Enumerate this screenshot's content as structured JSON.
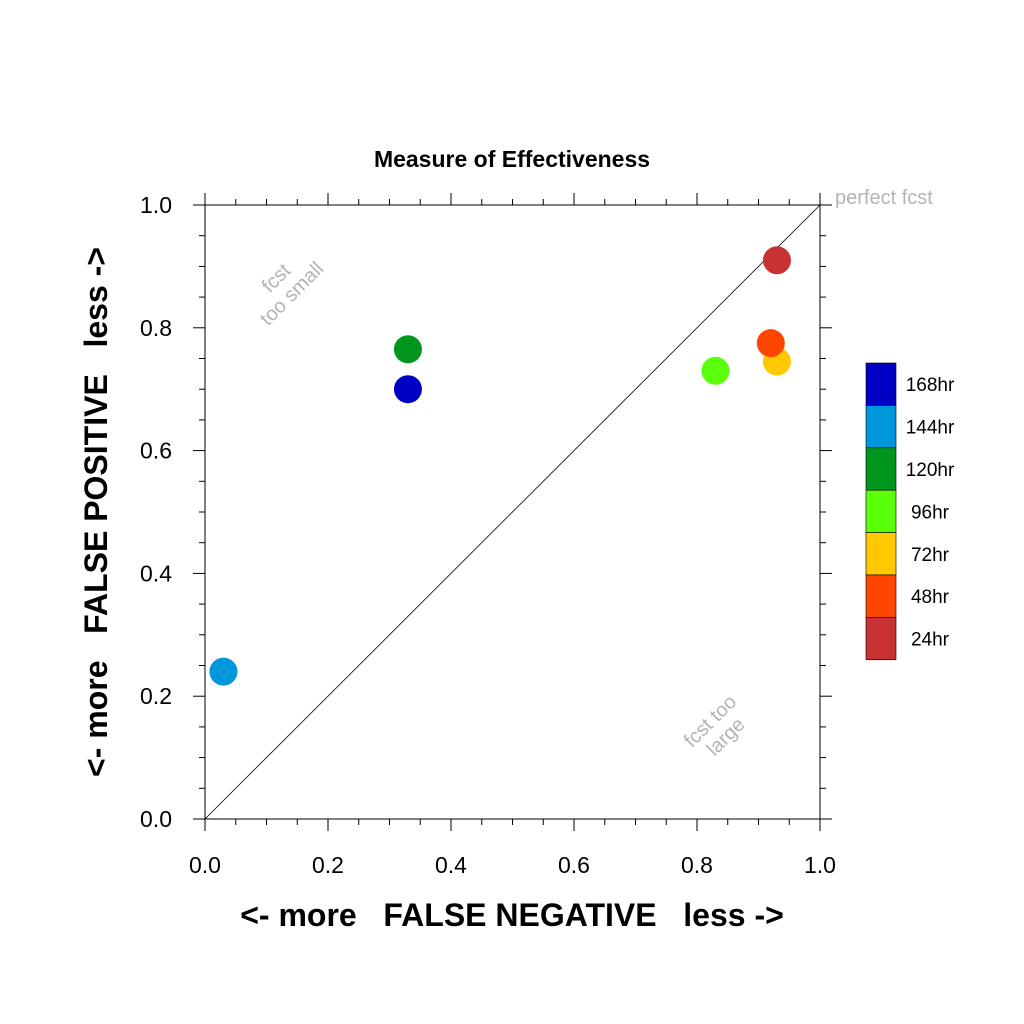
{
  "chart_data": {
    "type": "scatter",
    "title": "Measure of Effectiveness",
    "xlabel": "<- more   FALSE NEGATIVE   less ->",
    "ylabel": "<- more   FALSE POSITIVE   less ->",
    "xlim": [
      0.0,
      1.0
    ],
    "ylim": [
      0.0,
      1.0
    ],
    "x_ticks": [
      "0.0",
      "0.2",
      "0.4",
      "0.6",
      "0.8",
      "1.0"
    ],
    "y_ticks": [
      "0.0",
      "0.2",
      "0.4",
      "0.6",
      "0.8",
      "1.0"
    ],
    "x_tick_values": [
      0.0,
      0.2,
      0.4,
      0.6,
      0.8,
      1.0
    ],
    "y_tick_values": [
      0.0,
      0.2,
      0.4,
      0.6,
      0.8,
      1.0
    ],
    "grid": false,
    "legend_position": "right",
    "annotations": {
      "perfect": "perfect fcst",
      "small_line1": "fcst",
      "small_line2": "too small",
      "large_line1": "fcst too",
      "large_line2": "large"
    },
    "series": [
      {
        "name": "168hr",
        "color": "#0000c4",
        "x": 0.33,
        "y": 0.7
      },
      {
        "name": "144hr",
        "color": "#0096dc",
        "x": 0.03,
        "y": 0.24
      },
      {
        "name": "120hr",
        "color": "#00961e",
        "x": 0.33,
        "y": 0.765
      },
      {
        "name": "96hr",
        "color": "#5aff0a",
        "x": 0.83,
        "y": 0.73
      },
      {
        "name": "72hr",
        "color": "#ffc800",
        "x": 0.93,
        "y": 0.745
      },
      {
        "name": "48hr",
        "color": "#ff4600",
        "x": 0.92,
        "y": 0.775
      },
      {
        "name": "24hr",
        "color": "#c83232",
        "x": 0.93,
        "y": 0.91
      }
    ]
  }
}
